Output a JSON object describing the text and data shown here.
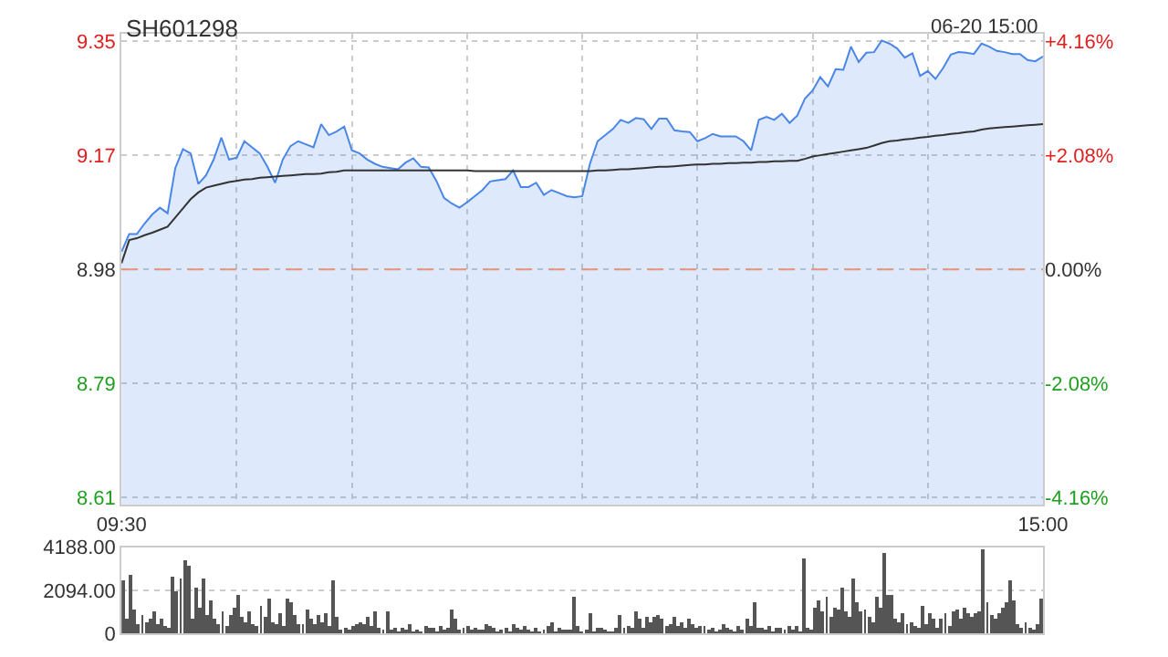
{
  "chart_data": [
    {
      "type": "area",
      "title": "SH601298",
      "annotations": [
        "06-20 15:00"
      ],
      "categories": [
        "09:30",
        null,
        null,
        null,
        null,
        null,
        null,
        null,
        null,
        null,
        null,
        null,
        null,
        null,
        null,
        null,
        null,
        null,
        null,
        null,
        null,
        null,
        null,
        null,
        null,
        null,
        null,
        null,
        null,
        null,
        null,
        null,
        null,
        null,
        null,
        null,
        null,
        null,
        null,
        null,
        null,
        null,
        null,
        null,
        null,
        null,
        null,
        null,
        null,
        null,
        null,
        null,
        null,
        null,
        null,
        null,
        null,
        null,
        null,
        null,
        null,
        null,
        null,
        null,
        null,
        null,
        null,
        null,
        null,
        null,
        null,
        null,
        null,
        null,
        null,
        null,
        null,
        null,
        null,
        null,
        null,
        null,
        null,
        null,
        null,
        null,
        null,
        null,
        null,
        null,
        null,
        null,
        null,
        null,
        null,
        null,
        null,
        null,
        null,
        null,
        null,
        null,
        null,
        null,
        null,
        null,
        null,
        null,
        null,
        null,
        null,
        null,
        null,
        null,
        null,
        null,
        null,
        null,
        null,
        null,
        "15:00"
      ],
      "series": [
        {
          "type": "area",
          "color": "#4a86e8",
          "values": [
            9.009,
            9.038,
            9.038,
            9.055,
            9.07,
            9.081,
            9.072,
            9.146,
            9.177,
            9.17,
            9.12,
            9.134,
            9.16,
            9.196,
            9.16,
            9.163,
            9.19,
            9.18,
            9.17,
            9.148,
            9.122,
            9.16,
            9.182,
            9.19,
            9.185,
            9.18,
            9.218,
            9.2,
            9.206,
            9.214,
            9.175,
            9.17,
            9.16,
            9.153,
            9.148,
            9.146,
            9.144,
            9.155,
            9.162,
            9.148,
            9.147,
            9.125,
            9.097,
            9.088,
            9.081,
            9.09,
            9.1,
            9.11,
            9.124,
            9.126,
            9.128,
            9.142,
            9.115,
            9.115,
            9.122,
            9.102,
            9.11,
            9.105,
            9.1,
            9.098,
            9.1,
            9.153,
            9.19,
            9.2,
            9.21,
            9.225,
            9.22,
            9.228,
            9.226,
            9.21,
            9.227,
            9.227,
            9.208,
            9.206,
            9.205,
            9.19,
            9.195,
            9.202,
            9.198,
            9.198,
            9.198,
            9.19,
            9.175,
            9.225,
            9.23,
            9.225,
            9.235,
            9.22,
            9.232,
            9.26,
            9.273,
            9.295,
            9.28,
            9.308,
            9.307,
            9.345,
            9.32,
            9.335,
            9.336,
            9.355,
            9.35,
            9.342,
            9.327,
            9.334,
            9.297,
            9.305,
            9.292,
            9.31,
            9.332,
            9.336,
            9.335,
            9.333,
            9.35,
            9.345,
            9.338,
            9.336,
            9.333,
            9.333,
            9.323,
            9.321,
            9.329
          ]
        },
        {
          "type": "line",
          "color": "#333333",
          "values": [
            8.99,
            9.028,
            9.031,
            9.036,
            9.04,
            9.045,
            9.05,
            9.065,
            9.08,
            9.095,
            9.106,
            9.114,
            9.117,
            9.12,
            9.123,
            9.125,
            9.127,
            9.128,
            9.13,
            9.131,
            9.132,
            9.133,
            9.134,
            9.135,
            9.136,
            9.136,
            9.137,
            9.139,
            9.14,
            9.142,
            9.142,
            9.142,
            9.142,
            9.142,
            9.142,
            9.142,
            9.142,
            9.142,
            9.142,
            9.142,
            9.142,
            9.142,
            9.142,
            9.142,
            9.142,
            9.142,
            9.141,
            9.141,
            9.141,
            9.141,
            9.141,
            9.141,
            9.141,
            9.141,
            9.141,
            9.141,
            9.141,
            9.141,
            9.141,
            9.141,
            9.141,
            9.141,
            9.142,
            9.142,
            9.143,
            9.144,
            9.144,
            9.145,
            9.146,
            9.147,
            9.148,
            9.148,
            9.149,
            9.15,
            9.151,
            9.152,
            9.152,
            9.153,
            9.153,
            9.154,
            9.154,
            9.155,
            9.155,
            9.156,
            9.156,
            9.157,
            9.157,
            9.158,
            9.158,
            9.161,
            9.165,
            9.167,
            9.169,
            9.171,
            9.173,
            9.175,
            9.177,
            9.179,
            9.183,
            9.187,
            9.19,
            9.191,
            9.193,
            9.194,
            9.196,
            9.197,
            9.199,
            9.2,
            9.202,
            9.203,
            9.205,
            9.206,
            9.209,
            9.211,
            9.212,
            9.213,
            9.214,
            9.215,
            9.216,
            9.217,
            9.218
          ]
        }
      ],
      "ylim": [
        8.594,
        9.366
      ],
      "yticks": [
        {
          "value": 8.6064,
          "label": "8.61"
        },
        {
          "value": 8.7932,
          "label": "8.79"
        },
        8.98,
        {
          "value": 9.1668,
          "label": "9.17"
        },
        {
          "value": 9.3536,
          "label": "9.35"
        }
      ],
      "y2lim": [
        -4.298,
        4.298
      ],
      "y2ticks": [
        {
          "value": -4.16,
          "label": "-4.16%"
        },
        {
          "value": -2.08,
          "label": "-2.08%"
        },
        {
          "value": 0,
          "label": "0.00%"
        },
        {
          "value": 2.08,
          "label": "+2.08%"
        },
        {
          "value": 4.16,
          "label": "+4.16%"
        }
      ],
      "ref_lines": [
        {
          "axis": "y",
          "value": 8.98,
          "color": "#e8957a",
          "line_style": "dashed"
        }
      ],
      "grid": true
    },
    {
      "type": "bar",
      "color": "#555555",
      "categories": [
        null,
        null,
        null,
        null,
        null,
        null,
        null,
        null,
        null,
        null,
        null,
        null,
        null,
        null,
        null,
        null,
        null,
        null,
        null,
        null,
        null,
        null,
        null,
        null,
        null,
        null,
        null,
        null,
        null,
        null,
        null,
        null,
        null,
        null,
        null,
        null,
        null,
        null,
        null,
        null,
        null,
        null,
        null,
        null,
        null,
        null,
        null,
        null,
        null,
        null,
        null,
        null,
        null,
        null,
        null,
        null,
        null,
        null,
        null,
        null,
        null,
        null,
        null,
        null,
        null,
        null,
        null,
        null,
        null,
        null,
        null,
        null,
        null,
        null,
        null,
        null,
        null,
        null,
        null,
        null,
        null,
        null,
        null,
        null,
        null,
        null,
        null,
        null,
        null,
        null,
        null,
        null,
        null,
        null,
        null,
        null,
        null,
        null,
        null,
        null,
        null,
        null,
        null,
        null,
        null,
        null,
        null,
        null,
        null,
        null,
        null,
        null,
        null,
        null,
        null,
        null,
        null,
        null,
        null,
        null,
        null,
        null,
        null,
        null,
        null,
        null,
        null,
        null,
        null,
        null,
        null,
        null,
        null,
        null,
        null,
        null,
        null,
        null,
        null,
        null,
        null,
        null,
        null,
        null,
        null,
        null,
        null,
        null,
        null,
        null,
        null,
        null,
        null,
        null,
        null,
        null,
        null,
        null,
        null,
        null,
        null,
        null,
        null,
        null,
        null,
        null,
        null,
        null,
        null,
        null,
        null,
        null,
        null,
        null,
        null,
        null,
        null,
        null,
        null,
        null,
        null,
        null,
        null,
        null,
        null,
        null,
        null,
        null,
        null,
        null,
        null,
        null,
        null,
        null,
        null,
        null,
        null,
        null,
        null,
        null,
        null,
        null,
        null,
        null,
        null,
        null,
        null,
        null,
        null,
        null,
        null,
        null,
        null,
        null,
        null,
        null,
        null,
        null,
        null,
        null,
        null,
        null,
        null,
        null,
        null,
        null,
        null,
        null,
        null,
        null,
        null,
        null,
        null,
        null,
        null,
        null,
        null,
        null,
        null,
        null,
        null
      ],
      "values": [
        2600,
        700,
        2900,
        1200,
        500,
        900,
        600,
        700,
        1100,
        500,
        700,
        400,
        300,
        2800,
        2100,
        2700,
        3600,
        3300,
        700,
        2200,
        1300,
        2700,
        900,
        1600,
        700,
        500,
        1100,
        400,
        900,
        1300,
        1900,
        800,
        600,
        1100,
        500,
        400,
        1400,
        800,
        1700,
        600,
        500,
        1000,
        400,
        1700,
        1500,
        900,
        500,
        500,
        1200,
        700,
        500,
        900,
        600,
        1000,
        400,
        2600,
        800,
        200,
        300,
        200,
        400,
        500,
        600,
        500,
        800,
        400,
        1100,
        300,
        200,
        1100,
        200,
        300,
        100,
        300,
        200,
        500,
        100,
        200,
        100,
        400,
        300,
        300,
        100,
        400,
        200,
        300,
        1200,
        700,
        200,
        300,
        400,
        200,
        300,
        200,
        200,
        500,
        400,
        300,
        100,
        200,
        300,
        100,
        500,
        300,
        200,
        400,
        200,
        100,
        300,
        100,
        200,
        400,
        600,
        100,
        300,
        200,
        200,
        200,
        1800,
        400,
        100,
        200,
        1000,
        100,
        300,
        300,
        200,
        100,
        100,
        300,
        900,
        300,
        400,
        300,
        1100,
        700,
        300,
        800,
        600,
        800,
        900,
        700,
        400,
        500,
        800,
        400,
        600,
        300,
        700,
        500,
        300,
        400,
        400,
        200,
        300,
        100,
        200,
        500,
        300,
        200,
        100,
        400,
        200,
        700,
        400,
        1500,
        300,
        300,
        200,
        400,
        100,
        300,
        300,
        200,
        400,
        200,
        400,
        100,
        3700,
        300,
        200,
        1300,
        1600,
        1100,
        1800,
        800,
        1300,
        1200,
        2200,
        1100,
        800,
        2700,
        1500,
        1100,
        1200,
        800,
        600,
        1800,
        1300,
        3900,
        1900,
        1900,
        700,
        600,
        1000,
        500,
        600,
        400,
        300,
        1400,
        500,
        1000,
        700,
        300,
        700,
        1000,
        400,
        1100,
        1200,
        700,
        1300,
        1000,
        800,
        1000,
        1100,
        4100,
        1500,
        900,
        700,
        1000,
        1300,
        1500,
        2600,
        1600,
        500,
        300,
        600,
        300,
        200,
        500,
        1700
      ],
      "ylim": [
        0,
        4188
      ],
      "yticks": [
        0,
        {
          "value": 2094,
          "label": "2094.00"
        },
        {
          "value": 4188,
          "label": "4188.00"
        }
      ],
      "grid": "y",
      "tick_labels": "y"
    }
  ]
}
